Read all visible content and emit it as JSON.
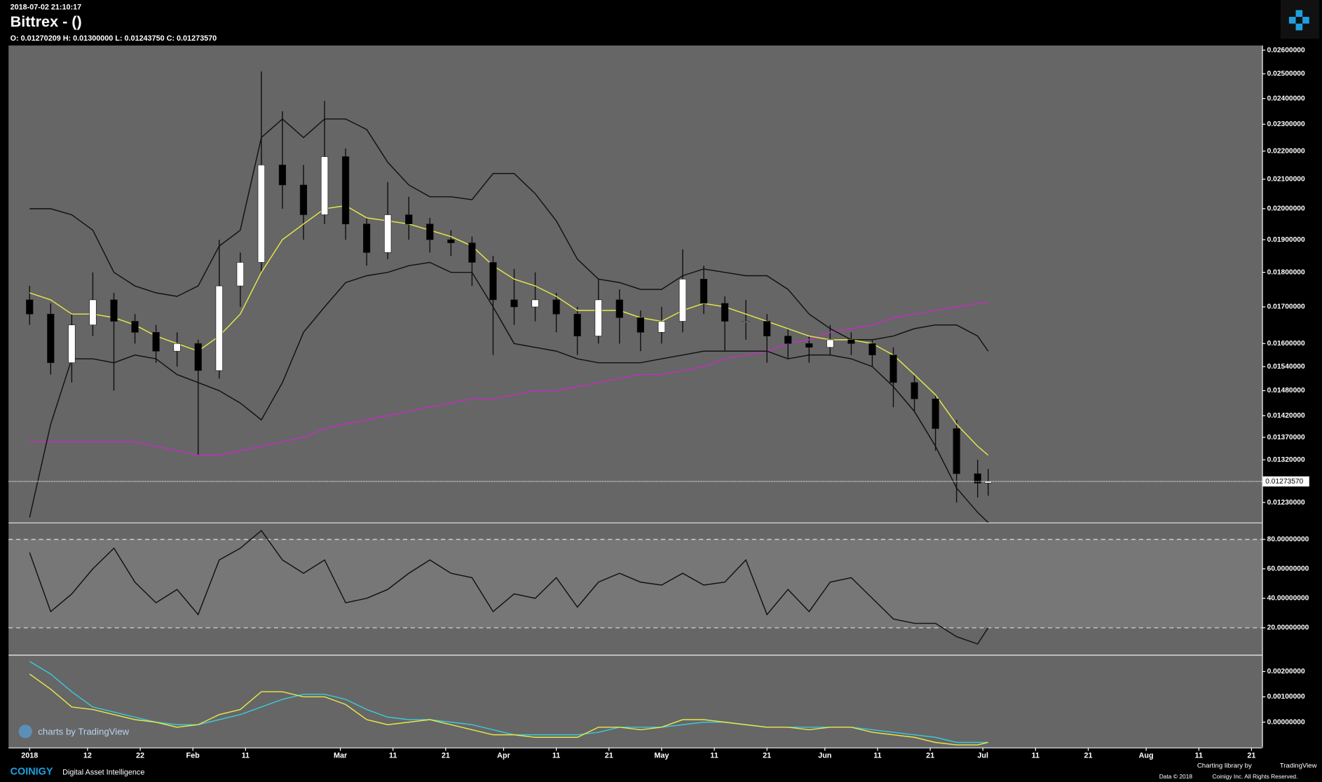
{
  "header": {
    "timestamp": "2018-07-02 21:10:17",
    "title": "Bittrex -  ()",
    "ohlc": "O: 0.01270209 H: 0.01300000 L: 0.01243750 C: 0.01273570"
  },
  "footer": {
    "watermark": "charts by TradingView",
    "brand": "COINIGY",
    "tagline": "Digital Asset Intelligence",
    "library": "Charting library by",
    "library_name": "TradingView",
    "copyright": "Data © 2018",
    "copyright_owner": "Coinigy Inc. All Rights Reserved."
  },
  "chart_data": [
    {
      "type": "candlestick",
      "log": true,
      "up_color": "#ffffff",
      "down_color": "#000000",
      "x": [
        "2018-01-01",
        "2018-01-05",
        "2018-01-09",
        "2018-01-13",
        "2018-01-17",
        "2018-01-21",
        "2018-01-25",
        "2018-01-29",
        "2018-02-02",
        "2018-02-06",
        "2018-02-10",
        "2018-02-14",
        "2018-02-18",
        "2018-02-22",
        "2018-02-26",
        "2018-03-02",
        "2018-03-06",
        "2018-03-10",
        "2018-03-14",
        "2018-03-18",
        "2018-03-22",
        "2018-03-26",
        "2018-03-30",
        "2018-04-03",
        "2018-04-07",
        "2018-04-11",
        "2018-04-15",
        "2018-04-19",
        "2018-04-23",
        "2018-04-27",
        "2018-05-01",
        "2018-05-05",
        "2018-05-09",
        "2018-05-13",
        "2018-05-17",
        "2018-05-21",
        "2018-05-25",
        "2018-05-29",
        "2018-06-02",
        "2018-06-06",
        "2018-06-10",
        "2018-06-14",
        "2018-06-18",
        "2018-06-22",
        "2018-06-26",
        "2018-06-30",
        "2018-07-02"
      ],
      "open": [
        0.0172,
        0.0168,
        0.0155,
        0.0165,
        0.0172,
        0.0166,
        0.0163,
        0.0158,
        0.016,
        0.0153,
        0.0176,
        0.0183,
        0.0215,
        0.0208,
        0.0198,
        0.0218,
        0.0195,
        0.0186,
        0.0198,
        0.0195,
        0.019,
        0.0189,
        0.0183,
        0.0172,
        0.017,
        0.0172,
        0.0168,
        0.0162,
        0.0172,
        0.0167,
        0.0163,
        0.0166,
        0.0178,
        0.0171,
        0.0166,
        0.0166,
        0.0162,
        0.016,
        0.0159,
        0.0161,
        0.016,
        0.0157,
        0.015,
        0.0146,
        0.0139,
        0.0129,
        0.01270209
      ],
      "high": [
        0.0176,
        0.0171,
        0.0168,
        0.018,
        0.0174,
        0.0168,
        0.0165,
        0.0163,
        0.0161,
        0.019,
        0.0186,
        0.0251,
        0.0235,
        0.0215,
        0.0239,
        0.0221,
        0.0197,
        0.0209,
        0.0204,
        0.0197,
        0.0193,
        0.0191,
        0.0185,
        0.0181,
        0.018,
        0.0174,
        0.017,
        0.0178,
        0.0175,
        0.0169,
        0.017,
        0.0187,
        0.0182,
        0.0173,
        0.0172,
        0.0168,
        0.0164,
        0.0162,
        0.0165,
        0.0163,
        0.0161,
        0.0159,
        0.0152,
        0.0147,
        0.0141,
        0.0132,
        0.013
      ],
      "low": [
        0.0165,
        0.0152,
        0.015,
        0.0162,
        0.0148,
        0.016,
        0.0155,
        0.0154,
        0.0133,
        0.0151,
        0.017,
        0.018,
        0.02,
        0.019,
        0.0195,
        0.019,
        0.0182,
        0.0184,
        0.019,
        0.0186,
        0.0185,
        0.0176,
        0.0157,
        0.0165,
        0.0166,
        0.0163,
        0.0157,
        0.016,
        0.016,
        0.0158,
        0.016,
        0.0163,
        0.0168,
        0.0158,
        0.0161,
        0.0155,
        0.0156,
        0.0155,
        0.0157,
        0.0157,
        0.0154,
        0.0144,
        0.0143,
        0.0134,
        0.0123,
        0.0124,
        0.0124375
      ],
      "close": [
        0.0168,
        0.0155,
        0.0165,
        0.0172,
        0.0166,
        0.0163,
        0.0158,
        0.016,
        0.0153,
        0.0176,
        0.0183,
        0.0215,
        0.0208,
        0.0198,
        0.0218,
        0.0195,
        0.0186,
        0.0198,
        0.0195,
        0.019,
        0.0189,
        0.0183,
        0.0172,
        0.017,
        0.0172,
        0.0168,
        0.0162,
        0.0172,
        0.0167,
        0.0163,
        0.0166,
        0.0178,
        0.0171,
        0.0166,
        0.0166,
        0.0162,
        0.016,
        0.0159,
        0.0161,
        0.016,
        0.0157,
        0.015,
        0.0146,
        0.0139,
        0.0129,
        0.0127,
        0.0127357
      ],
      "series": [
        {
          "color": "#c030c0",
          "values": [
            0.0136,
            0.0136,
            0.0136,
            0.0136,
            0.0136,
            0.0136,
            0.0135,
            0.0134,
            0.0133,
            0.0133,
            0.0134,
            0.0135,
            0.0136,
            0.0137,
            0.0139,
            0.014,
            0.0141,
            0.0142,
            0.0143,
            0.0144,
            0.0145,
            0.0146,
            0.0146,
            0.0147,
            0.0148,
            0.0148,
            0.0149,
            0.015,
            0.0151,
            0.0152,
            0.0152,
            0.0153,
            0.0154,
            0.0156,
            0.0157,
            0.0158,
            0.016,
            0.0161,
            0.0163,
            0.0164,
            0.0165,
            0.0167,
            0.0168,
            0.0169,
            0.017,
            0.0171,
            0.0171
          ]
        },
        {
          "color": "#111111",
          "values": [
            0.02,
            0.02,
            0.0198,
            0.0193,
            0.018,
            0.0176,
            0.0174,
            0.0173,
            0.0176,
            0.0188,
            0.0193,
            0.0225,
            0.0232,
            0.0225,
            0.0232,
            0.0232,
            0.0228,
            0.0216,
            0.0208,
            0.0204,
            0.0204,
            0.0203,
            0.0212,
            0.0212,
            0.0205,
            0.0196,
            0.0184,
            0.0178,
            0.0177,
            0.0175,
            0.0175,
            0.0179,
            0.0181,
            0.018,
            0.0179,
            0.0179,
            0.0175,
            0.0168,
            0.0164,
            0.0161,
            0.0161,
            0.0162,
            0.0164,
            0.0165,
            0.0165,
            0.0162,
            0.0158
          ]
        },
        {
          "color": "#111111",
          "values": [
            0.012,
            0.014,
            0.0156,
            0.0156,
            0.0155,
            0.0157,
            0.0156,
            0.0152,
            0.015,
            0.0148,
            0.0145,
            0.0141,
            0.015,
            0.0163,
            0.017,
            0.0177,
            0.0179,
            0.018,
            0.0182,
            0.0183,
            0.018,
            0.018,
            0.017,
            0.016,
            0.0159,
            0.0158,
            0.0156,
            0.0155,
            0.0155,
            0.0155,
            0.0156,
            0.0157,
            0.0158,
            0.0158,
            0.0158,
            0.0158,
            0.0156,
            0.0157,
            0.0157,
            0.0156,
            0.0154,
            0.0149,
            0.0143,
            0.0135,
            0.0126,
            0.0121,
            0.0119
          ]
        },
        {
          "color": "#e8e84a",
          "values": [
            0.0174,
            0.0172,
            0.0168,
            0.0168,
            0.0167,
            0.0165,
            0.0162,
            0.016,
            0.0158,
            0.0162,
            0.0168,
            0.018,
            0.019,
            0.0195,
            0.02,
            0.0201,
            0.0197,
            0.0196,
            0.0195,
            0.0193,
            0.0191,
            0.0188,
            0.0182,
            0.0178,
            0.0176,
            0.0173,
            0.0169,
            0.0169,
            0.0169,
            0.0167,
            0.0166,
            0.0169,
            0.0171,
            0.017,
            0.0168,
            0.0166,
            0.0164,
            0.0162,
            0.0161,
            0.0161,
            0.016,
            0.0157,
            0.0152,
            0.0147,
            0.014,
            0.0135,
            0.0133
          ]
        }
      ],
      "last_price": {
        "value": 0.0127357,
        "label": "0.01273570"
      },
      "xlim": [
        "2017-12-28",
        "2018-08-23"
      ],
      "xticks": [
        {
          "value": "2018-01-01",
          "label": "2018"
        },
        {
          "value": "2018-01-12",
          "label": "12"
        },
        {
          "value": "2018-01-22",
          "label": "22"
        },
        {
          "value": "2018-02-01",
          "label": "Feb"
        },
        {
          "value": "2018-02-11",
          "label": "11"
        },
        {
          "value": "2018-03-01",
          "label": "Mar"
        },
        {
          "value": "2018-03-11",
          "label": "11"
        },
        {
          "value": "2018-03-21",
          "label": "21"
        },
        {
          "value": "2018-04-01",
          "label": "Apr"
        },
        {
          "value": "2018-04-11",
          "label": "11"
        },
        {
          "value": "2018-04-21",
          "label": "21"
        },
        {
          "value": "2018-05-01",
          "label": "May"
        },
        {
          "value": "2018-05-11",
          "label": "11"
        },
        {
          "value": "2018-05-21",
          "label": "21"
        },
        {
          "value": "2018-06-01",
          "label": "Jun"
        },
        {
          "value": "2018-06-11",
          "label": "11"
        },
        {
          "value": "2018-06-21",
          "label": "21"
        },
        {
          "value": "2018-07-01",
          "label": "Jul"
        },
        {
          "value": "2018-07-11",
          "label": "11"
        },
        {
          "value": "2018-07-21",
          "label": "21"
        },
        {
          "value": "2018-08-01",
          "label": "Aug"
        },
        {
          "value": "2018-08-11",
          "label": "11"
        },
        {
          "value": "2018-08-21",
          "label": "21"
        }
      ],
      "ylim": [
        0.0119,
        0.0262
      ],
      "yticks": [
        {
          "value": 0.026,
          "label": "0.02600000"
        },
        {
          "value": 0.025,
          "label": "0.02500000"
        },
        {
          "value": 0.024,
          "label": "0.02400000"
        },
        {
          "value": 0.023,
          "label": "0.02300000"
        },
        {
          "value": 0.022,
          "label": "0.02200000"
        },
        {
          "value": 0.021,
          "label": "0.02100000"
        },
        {
          "value": 0.02,
          "label": "0.02000000"
        },
        {
          "value": 0.019,
          "label": "0.01900000"
        },
        {
          "value": 0.018,
          "label": "0.01800000"
        },
        {
          "value": 0.017,
          "label": "0.01700000"
        },
        {
          "value": 0.016,
          "label": "0.01600000"
        },
        {
          "value": 0.0154,
          "label": "0.01540000"
        },
        {
          "value": 0.0148,
          "label": "0.01480000"
        },
        {
          "value": 0.0142,
          "label": "0.01420000"
        },
        {
          "value": 0.0137,
          "label": "0.01370000"
        },
        {
          "value": 0.0132,
          "label": "0.01320000"
        },
        {
          "value": 0.0123,
          "label": "0.01230000"
        }
      ]
    },
    {
      "type": "line",
      "bands": [
        20,
        80
      ],
      "series": [
        {
          "color": "#111111",
          "values": [
            71,
            31,
            43,
            60,
            74,
            51,
            37,
            46,
            29,
            66,
            74,
            86,
            66,
            57,
            66,
            37,
            40,
            46,
            57,
            66,
            57,
            54,
            31,
            43,
            40,
            54,
            34,
            51,
            57,
            51,
            49,
            57,
            49,
            51,
            66,
            29,
            46,
            31,
            51,
            54,
            40,
            26,
            23,
            23,
            14,
            9,
            20
          ]
        }
      ],
      "ylim": [
        1.7,
        90.9
      ],
      "yticks": [
        {
          "value": 80,
          "label": "80.00000000"
        },
        {
          "value": 60,
          "label": "60.00000000"
        },
        {
          "value": 40,
          "label": "40.00000000"
        },
        {
          "value": 20,
          "label": "20.00000000"
        }
      ]
    },
    {
      "type": "line",
      "series": [
        {
          "color": "#3cc8d8",
          "values": [
            0.0024,
            0.0019,
            0.0012,
            0.0006,
            0.0004,
            0.0002,
            0,
            -0.0001,
            -0.0001,
            0.0001,
            0.0003,
            0.0006,
            0.0009,
            0.0011,
            0.0011,
            0.0009,
            0.0005,
            0.0002,
            0.0001,
            0.0001,
            0,
            -0.0001,
            -0.0003,
            -0.0005,
            -0.0005,
            -0.0005,
            -0.0005,
            -0.0004,
            -0.0002,
            -0.0002,
            -0.0002,
            -0.0001,
            0,
            0,
            -0.0001,
            -0.0002,
            -0.0002,
            -0.0002,
            -0.0002,
            -0.0002,
            -0.0003,
            -0.0004,
            -0.0005,
            -0.0006,
            -0.0008,
            -0.0008,
            -0.0008
          ]
        },
        {
          "color": "#e8e84a",
          "values": [
            0.0019,
            0.0013,
            0.0006,
            0.0005,
            0.0003,
            0.0001,
            0,
            -0.0002,
            -0.0001,
            0.0003,
            0.0005,
            0.0012,
            0.0012,
            0.001,
            0.001,
            0.0007,
            0.0001,
            -0.0001,
            0,
            0.0001,
            -0.0001,
            -0.0003,
            -0.0005,
            -0.0005,
            -0.0006,
            -0.0006,
            -0.0006,
            -0.0002,
            -0.0002,
            -0.0003,
            -0.0002,
            0.0001,
            0.0001,
            0,
            -0.0001,
            -0.0002,
            -0.0002,
            -0.0003,
            -0.0002,
            -0.0002,
            -0.0004,
            -0.0005,
            -0.0006,
            -0.0008,
            -0.0009,
            -0.0009,
            -0.0008
          ]
        }
      ],
      "ylim": [
        -0.001,
        0.00263
      ],
      "yticks": [
        {
          "value": 0.002,
          "label": "0.00200000"
        },
        {
          "value": 0.001,
          "label": "0.00100000"
        },
        {
          "value": 0,
          "label": "0.00000000"
        }
      ]
    }
  ]
}
